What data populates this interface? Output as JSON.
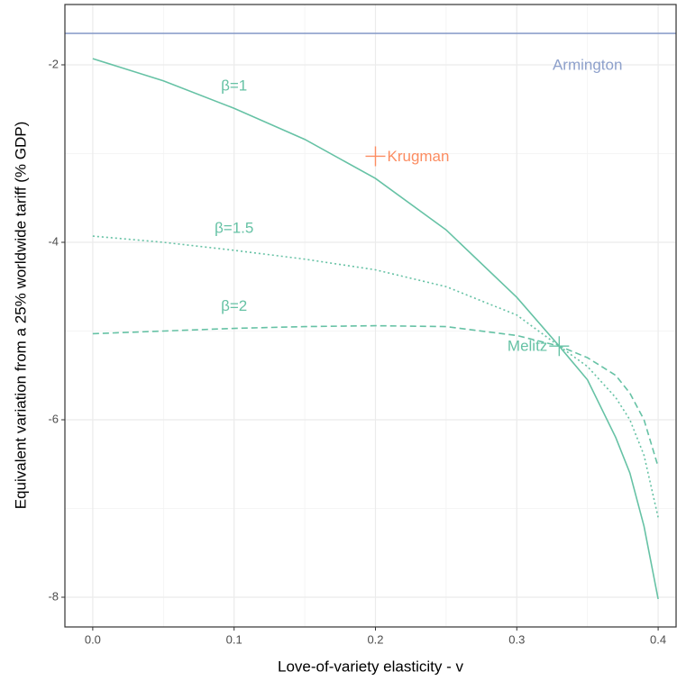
{
  "chart_data": {
    "type": "line",
    "x_label": "Love-of-variety elasticity - v",
    "y_label": "Equivalent variation from a 25% worldwide tariff (% GDP)",
    "x": [
      0,
      0.05,
      0.1,
      0.15,
      0.2,
      0.25,
      0.3,
      0.33,
      0.35,
      0.37,
      0.38,
      0.39,
      0.4
    ],
    "series": [
      {
        "name": "β=1",
        "color": "#66c2a5",
        "dash": "solid",
        "values": [
          -1.93,
          -2.18,
          -2.49,
          -2.84,
          -3.28,
          -3.86,
          -4.62,
          -5.17,
          -5.55,
          -6.2,
          -6.6,
          -7.2,
          -8.02
        ]
      },
      {
        "name": "β=1.5",
        "color": "#66c2a5",
        "dash": "dotted",
        "values": [
          -3.93,
          -4.0,
          -4.09,
          -4.19,
          -4.31,
          -4.5,
          -4.82,
          -5.17,
          -5.4,
          -5.75,
          -6.0,
          -6.4,
          -7.1
        ]
      },
      {
        "name": "β=2",
        "color": "#66c2a5",
        "dash": "dashed",
        "values": [
          -5.03,
          -5.0,
          -4.97,
          -4.95,
          -4.94,
          -4.95,
          -5.05,
          -5.17,
          -5.3,
          -5.5,
          -5.7,
          -6.0,
          -6.53
        ]
      }
    ],
    "reference_line": {
      "label": "Armington",
      "value": -1.645,
      "color": "#8da0cb"
    },
    "points": [
      {
        "label": "Krugman",
        "x": 0.2,
        "y": -3.03,
        "color": "#fc8d62"
      },
      {
        "label": "Melitz",
        "x": 0.33,
        "y": -5.17,
        "color": "#66c2a5"
      }
    ],
    "xlim": [
      -0.0197,
      0.4127
    ],
    "ylim": [
      -8.335,
      -1.32
    ],
    "xticks": [
      {
        "value": 0,
        "label": "0.0"
      },
      0.1,
      0.2,
      0.3,
      0.4
    ],
    "yticks": [
      -8,
      -6,
      -4,
      -2
    ],
    "x_minor_ticks": [
      0.05,
      0.15,
      0.25,
      0.35
    ],
    "y_minor_ticks": [
      -7,
      -5,
      -3
    ],
    "grid": true
  }
}
